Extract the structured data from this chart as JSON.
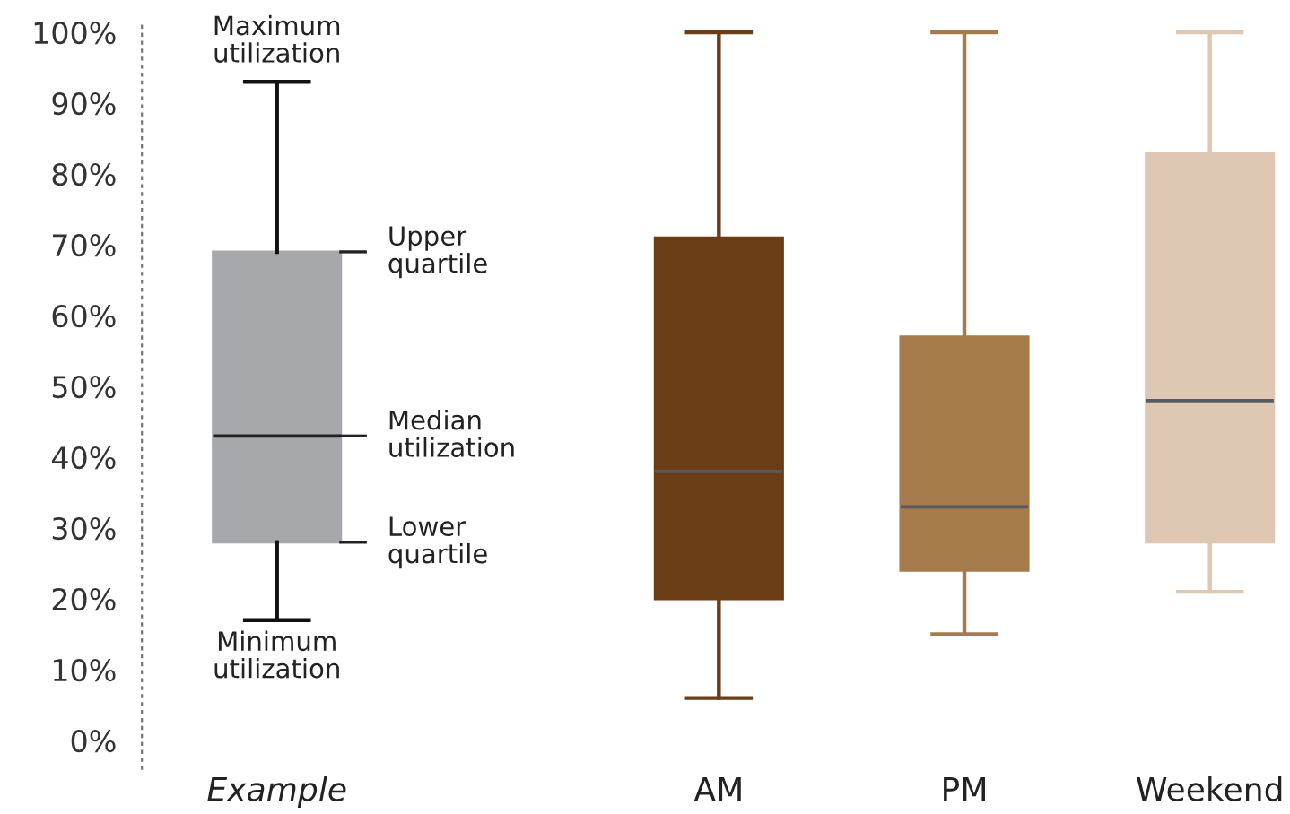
{
  "chart_data": {
    "type": "box",
    "categories": [
      "Example",
      "AM",
      "PM",
      "Weekend"
    ],
    "boxes": [
      {
        "low": 17,
        "q1": 28,
        "median": 43,
        "q3": 69,
        "high": 93
      },
      {
        "low": 6,
        "q1": 20,
        "median": 38,
        "q3": 71,
        "high": 100
      },
      {
        "low": 15,
        "q1": 24,
        "median": 33,
        "q3": 57,
        "high": 100
      },
      {
        "low": 21,
        "q1": 28,
        "median": 48,
        "q3": 83,
        "high": 100
      }
    ],
    "colors": [
      "#a7a8ac",
      "#6b3d17",
      "#a57b4c",
      "#dfc8b3"
    ],
    "ylim": [
      -4,
      101
    ],
    "yticks": [
      {
        "value": 0,
        "label": "0%"
      },
      {
        "value": 10,
        "label": "10%"
      },
      {
        "value": 20,
        "label": "20%"
      },
      {
        "value": 30,
        "label": "30%"
      },
      {
        "value": 40,
        "label": "40%"
      },
      {
        "value": 50,
        "label": "50%"
      },
      {
        "value": 60,
        "label": "60%"
      },
      {
        "value": 70,
        "label": "70%"
      },
      {
        "value": 80,
        "label": "80%"
      },
      {
        "value": 90,
        "label": "90%"
      },
      {
        "value": 100,
        "label": "100%"
      }
    ],
    "annotations": [
      "Maximum\nutilization",
      "Upper\nquartile",
      "Median\nutilization",
      "Lower\nquartile",
      "Minimum\nutilization"
    ],
    "grid": false,
    "legend": false
  }
}
